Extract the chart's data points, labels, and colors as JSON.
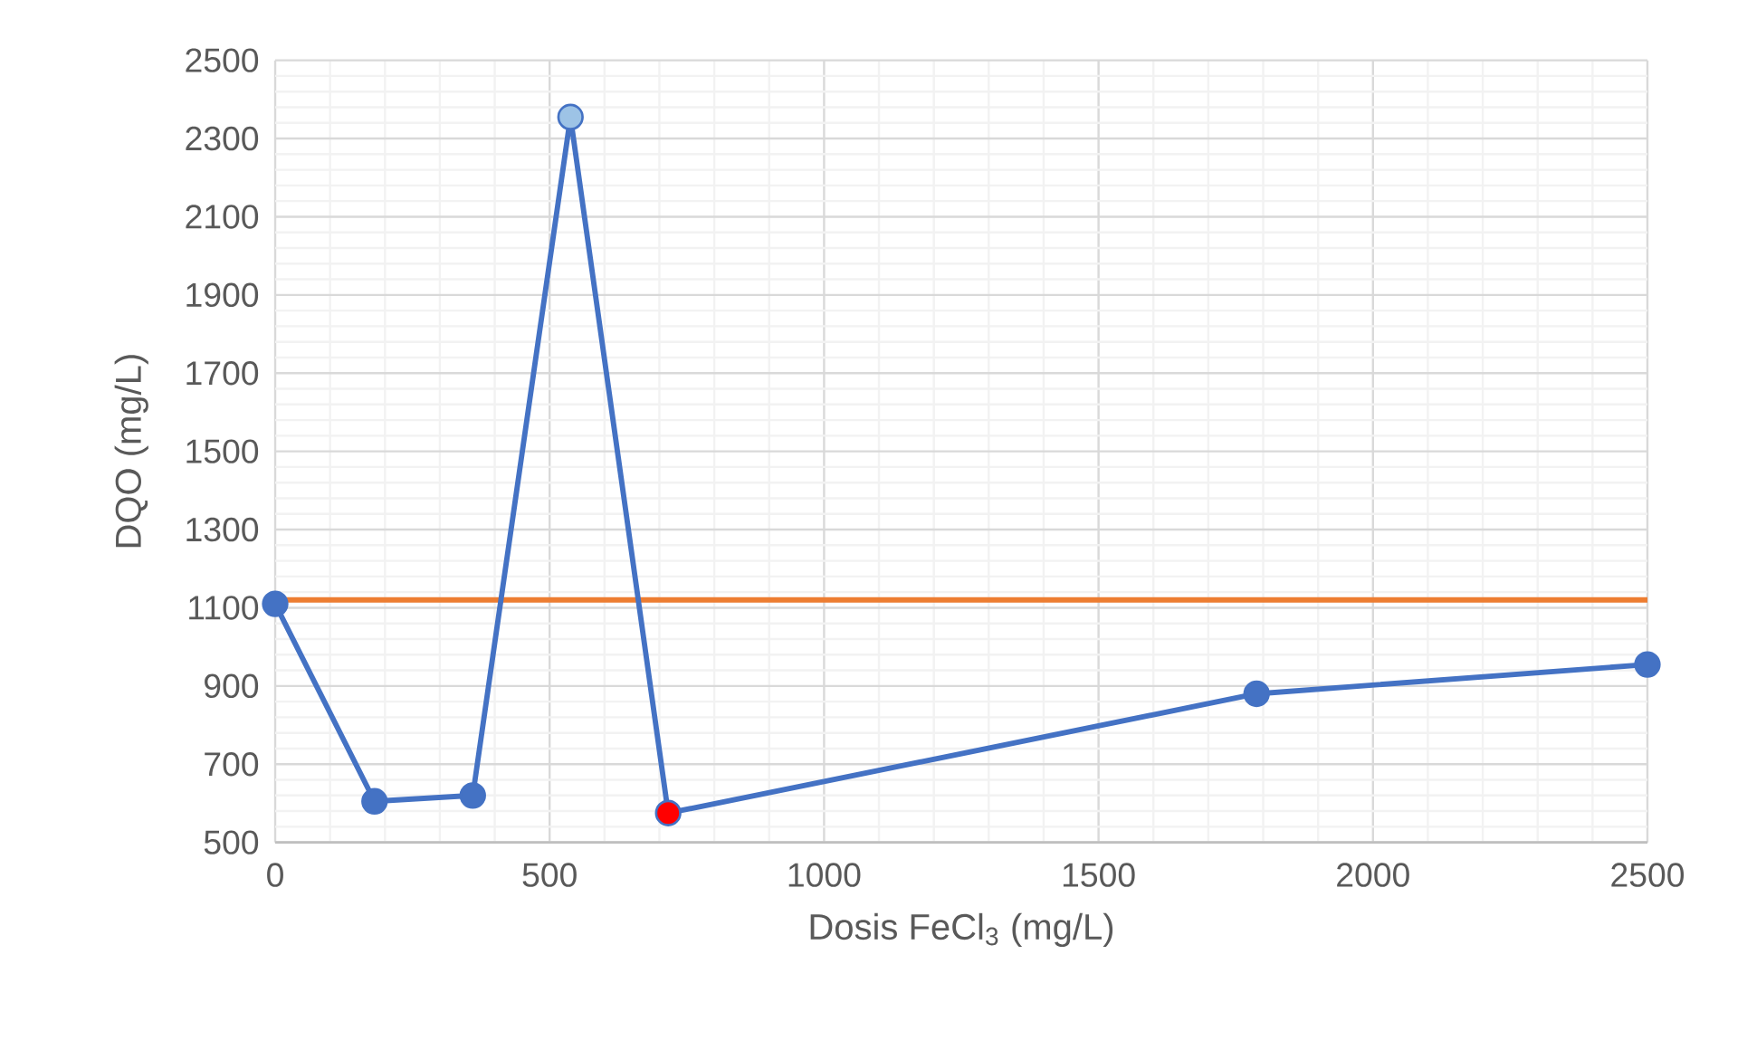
{
  "chart_data": {
    "type": "line",
    "xlabel": "Dosis FeCl$_{3}$ (mg/L)",
    "ylabel": "DQO (mg/L)",
    "x": [
      0,
      181,
      360,
      538,
      716,
      1788,
      2500
    ],
    "series": [
      {
        "color": "#4472c4",
        "colors": [
          "#4472c4",
          "#4472c4",
          "#4472c4",
          "#9dc3e6",
          "#ff0000",
          "#4472c4",
          "#4472c4"
        ],
        "values": [
          1110,
          605,
          620,
          2355,
          575,
          880,
          955
        ]
      }
    ],
    "xlim": [
      0,
      2500
    ],
    "xticks": [
      0,
      500,
      1000,
      1500,
      2000,
      2500
    ],
    "ylim": [
      500,
      2500
    ],
    "yticks": [
      500,
      700,
      900,
      1100,
      1300,
      1500,
      1700,
      1900,
      2100,
      2300,
      2500
    ],
    "ref_lines": [
      {
        "axis": "y",
        "value": 1120,
        "color": "#ed7d31"
      }
    ],
    "grid": true,
    "marker": "circle",
    "line_style": "solid"
  }
}
